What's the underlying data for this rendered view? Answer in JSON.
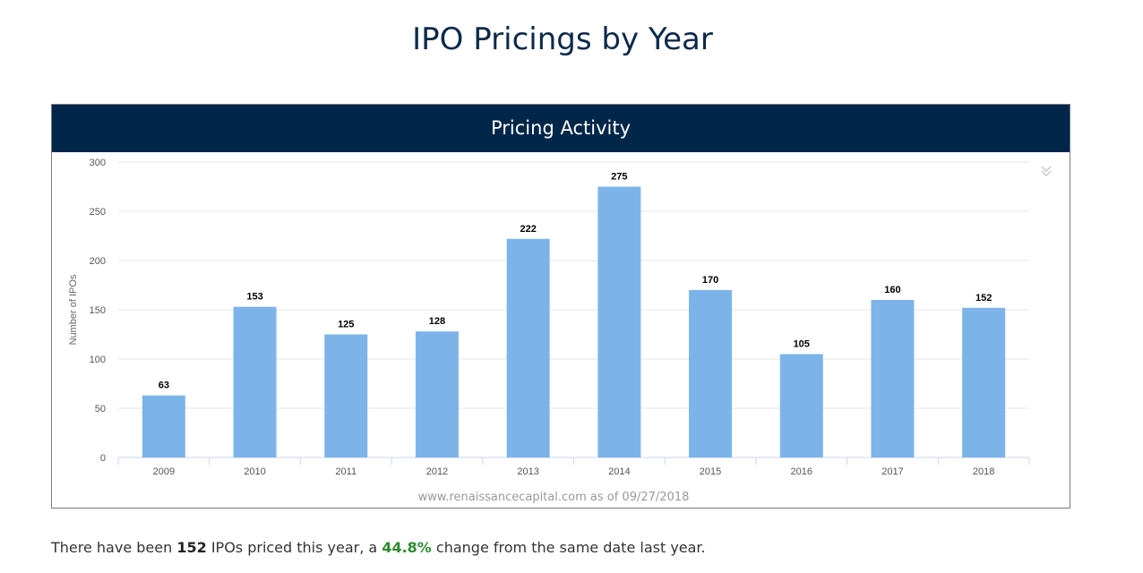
{
  "page": {
    "title": "IPO Pricings by Year"
  },
  "panel": {
    "header": "Pricing Activity"
  },
  "chart_data": {
    "type": "bar",
    "title": "Pricing Activity",
    "ylabel": "Number of IPOs",
    "xlabel": "",
    "categories": [
      "2009",
      "2010",
      "2011",
      "2012",
      "2013",
      "2014",
      "2015",
      "2016",
      "2017",
      "2018"
    ],
    "values": [
      63,
      153,
      125,
      128,
      222,
      275,
      170,
      105,
      160,
      152
    ],
    "ylim": [
      0,
      300
    ],
    "yticks": [
      0,
      50,
      100,
      150,
      200,
      250,
      300
    ],
    "data_labels": true,
    "grid": true,
    "legend": "none",
    "bar_color": "#7cb4ea",
    "credit": "www.renaissancecapital.com as of 09/27/2018"
  },
  "icons": {
    "menu": "chevron-double-down-icon"
  },
  "summary": {
    "prefix": "There have been ",
    "count": "152",
    "middle": " IPOs priced this year, a ",
    "change": "44.8%",
    "suffix": " change from the same date last year."
  }
}
